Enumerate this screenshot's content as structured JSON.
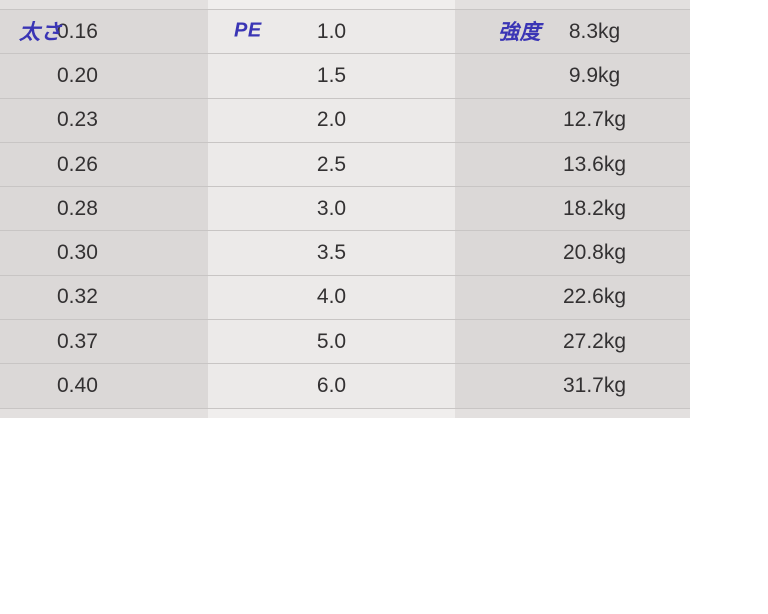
{
  "page": {
    "background_color": "#ffffff"
  },
  "spec_table": {
    "column_headers": {
      "thickness_label": "太さ",
      "pe_label": "PE",
      "strength_label": "強度"
    },
    "colors": {
      "header_label_color": "#3a35b5",
      "value_text_color": "#333132",
      "outer_column_bg": "#dbd8d7",
      "middle_column_bg": "#eceae9",
      "row_separator": "#c8c5c4",
      "partial_row_outer_bg": "#e3e0df",
      "partial_row_middle_bg": "#f0eeed"
    },
    "rows": [
      {
        "thickness": "0.16",
        "pe": "1.0",
        "strength": "8.3kg"
      },
      {
        "thickness": "0.20",
        "pe": "1.5",
        "strength": "9.9kg"
      },
      {
        "thickness": "0.23",
        "pe": "2.0",
        "strength": "12.7kg"
      },
      {
        "thickness": "0.26",
        "pe": "2.5",
        "strength": "13.6kg"
      },
      {
        "thickness": "0.28",
        "pe": "3.0",
        "strength": "18.2kg"
      },
      {
        "thickness": "0.30",
        "pe": "3.5",
        "strength": "20.8kg"
      },
      {
        "thickness": "0.32",
        "pe": "4.0",
        "strength": "22.6kg"
      },
      {
        "thickness": "0.37",
        "pe": "5.0",
        "strength": "27.2kg"
      },
      {
        "thickness": "0.40",
        "pe": "6.0",
        "strength": "31.7kg"
      }
    ]
  },
  "chart_data": {
    "type": "table",
    "columns": [
      "太さ",
      "PE",
      "強度"
    ],
    "rows": [
      [
        "0.16",
        "1.0",
        "8.3kg"
      ],
      [
        "0.20",
        "1.5",
        "9.9kg"
      ],
      [
        "0.23",
        "2.0",
        "12.7kg"
      ],
      [
        "0.26",
        "2.5",
        "13.6kg"
      ],
      [
        "0.28",
        "3.0",
        "18.2kg"
      ],
      [
        "0.30",
        "3.5",
        "20.8kg"
      ],
      [
        "0.32",
        "4.0",
        "22.6kg"
      ],
      [
        "0.37",
        "5.0",
        "27.2kg"
      ],
      [
        "0.40",
        "6.0",
        "31.7kg"
      ]
    ]
  }
}
